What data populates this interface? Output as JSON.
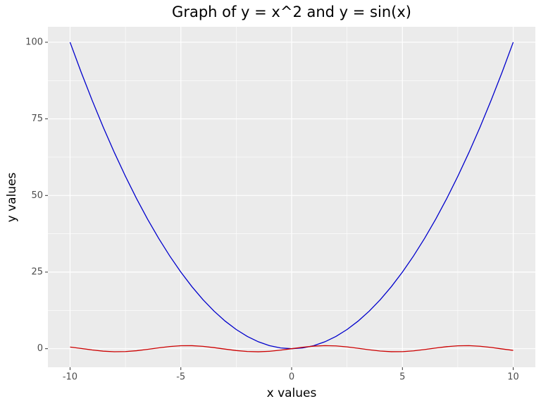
{
  "chart_data": {
    "type": "line",
    "title": "Graph of y = x^2 and y = sin(x)",
    "xlabel": "x values",
    "ylabel": "y values",
    "x": [
      -10,
      -9.5,
      -9,
      -8.5,
      -8,
      -7.5,
      -7,
      -6.5,
      -6,
      -5.5,
      -5,
      -4.5,
      -4,
      -3.5,
      -3,
      -2.5,
      -2,
      -1.5,
      -1,
      -0.5,
      0,
      0.5,
      1,
      1.5,
      2,
      2.5,
      3,
      3.5,
      4,
      4.5,
      5,
      5.5,
      6,
      6.5,
      7,
      7.5,
      8,
      8.5,
      9,
      9.5,
      10
    ],
    "series": [
      {
        "color": "#0000cc",
        "values": [
          100,
          90.25,
          81,
          72.25,
          64,
          56.25,
          49,
          42.25,
          36,
          30.25,
          25,
          20.25,
          16,
          12.25,
          9,
          6.25,
          4,
          2.25,
          1,
          0.25,
          0,
          0.25,
          1,
          2.25,
          4,
          6.25,
          9,
          12.25,
          16,
          20.25,
          25,
          30.25,
          36,
          42.25,
          49,
          56.25,
          64,
          72.25,
          81,
          90.25,
          100
        ]
      },
      {
        "color": "#cc0000",
        "values": [
          0.54,
          0.08,
          -0.41,
          -0.8,
          -0.99,
          -0.94,
          -0.66,
          -0.22,
          0.28,
          0.71,
          0.96,
          0.98,
          0.76,
          0.35,
          -0.14,
          -0.6,
          -0.91,
          -1,
          -0.84,
          -0.48,
          0,
          0.48,
          0.84,
          1,
          0.91,
          0.6,
          0.14,
          -0.35,
          -0.76,
          -0.98,
          -0.96,
          -0.71,
          -0.28,
          0.22,
          0.66,
          0.94,
          0.99,
          0.8,
          0.41,
          -0.08,
          -0.54
        ]
      }
    ],
    "xlim": [
      -11,
      11
    ],
    "ylim": [
      -6.05,
      105.05
    ],
    "xticks": [
      -10,
      -5,
      0,
      5,
      10
    ],
    "yticks": [
      0,
      25,
      50,
      75,
      100
    ],
    "minor_xticks": [
      -7.5,
      -2.5,
      2.5,
      7.5
    ],
    "minor_yticks": [
      12.5,
      37.5,
      62.5,
      87.5
    ],
    "grid": true
  }
}
